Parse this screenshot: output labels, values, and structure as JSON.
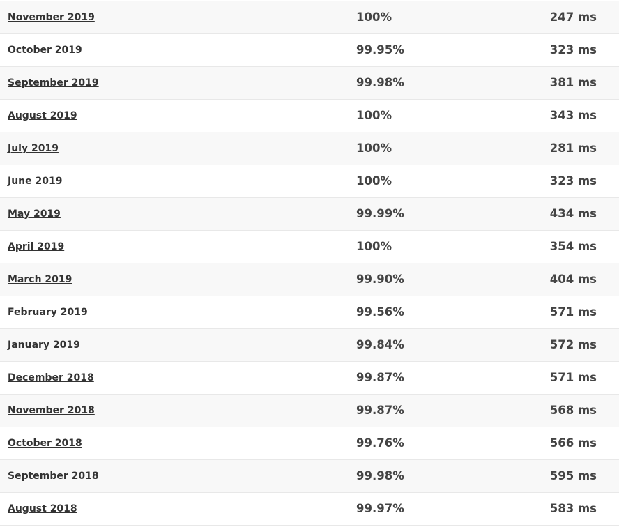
{
  "rows": [
    {
      "month": "November 2019",
      "uptime": "100%",
      "response": "247 ms"
    },
    {
      "month": "October 2019",
      "uptime": "99.95%",
      "response": "323 ms"
    },
    {
      "month": "September 2019",
      "uptime": "99.98%",
      "response": "381 ms"
    },
    {
      "month": "August 2019",
      "uptime": "100%",
      "response": "343 ms"
    },
    {
      "month": "July 2019",
      "uptime": "100%",
      "response": "281 ms"
    },
    {
      "month": "June 2019",
      "uptime": "100%",
      "response": "323 ms"
    },
    {
      "month": "May 2019",
      "uptime": "99.99%",
      "response": "434 ms"
    },
    {
      "month": "April 2019",
      "uptime": "100%",
      "response": "354 ms"
    },
    {
      "month": "March 2019",
      "uptime": "99.90%",
      "response": "404 ms"
    },
    {
      "month": "February 2019",
      "uptime": "99.56%",
      "response": "571 ms"
    },
    {
      "month": "January 2019",
      "uptime": "99.84%",
      "response": "572 ms"
    },
    {
      "month": "December 2018",
      "uptime": "99.87%",
      "response": "571 ms"
    },
    {
      "month": "November 2018",
      "uptime": "99.87%",
      "response": "568 ms"
    },
    {
      "month": "October 2018",
      "uptime": "99.76%",
      "response": "566 ms"
    },
    {
      "month": "September 2018",
      "uptime": "99.98%",
      "response": "595 ms"
    },
    {
      "month": "August 2018",
      "uptime": "99.97%",
      "response": "583 ms"
    }
  ]
}
